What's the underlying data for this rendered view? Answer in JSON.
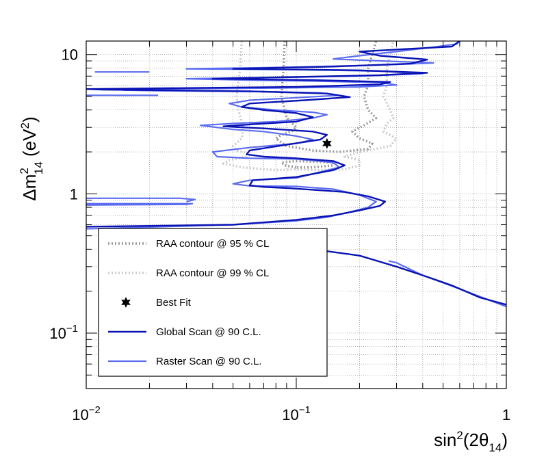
{
  "chart_data": {
    "type": "line",
    "xlabel": "sin²(2θ₁₄)",
    "ylabel": "Δm²₁₄ (eV²)",
    "x_scale": "log",
    "y_scale": "log",
    "xlim": [
      0.01,
      1
    ],
    "ylim": [
      0.04,
      12.5
    ],
    "grid": true,
    "x_ticks": [
      {
        "value": 0.01,
        "base": "10",
        "exp": "−2"
      },
      {
        "value": 0.1,
        "base": "10",
        "exp": "−1"
      },
      {
        "value": 1,
        "base": "1",
        "exp": ""
      }
    ],
    "y_ticks": [
      {
        "value": 0.1,
        "base": "10",
        "exp": "−1"
      },
      {
        "value": 1,
        "base": "1",
        "exp": ""
      },
      {
        "value": 10,
        "base": "10",
        "exp": ""
      }
    ],
    "legend_position": "lower-left",
    "legend": [
      {
        "label": "RAA contour @ 95 % CL",
        "series": "raa95"
      },
      {
        "label": "RAA contour @ 99 % CL",
        "series": "raa99"
      },
      {
        "label": "Best Fit",
        "series": "best_fit"
      },
      {
        "label": "Global Scan @ 90 C.L.",
        "series": "global"
      },
      {
        "label": "Raster Scan @ 90 C.L.",
        "series": "raster"
      }
    ],
    "best_fit": {
      "x": 0.14,
      "y": 2.3
    },
    "series": [
      {
        "id": "raster",
        "color": "#5c6cf0",
        "style": "solid",
        "segments": [
          [
            [
              0.02,
              7.5
            ],
            [
              0.011,
              7.5
            ]
          ],
          [
            [
              0.022,
              5.1
            ],
            [
              0.01,
              5.1
            ]
          ],
          [
            [
              0.03,
              0.88
            ],
            [
              0.033,
              0.91
            ],
            [
              0.028,
              0.93
            ],
            [
              0.01,
              0.93
            ]
          ],
          [
            [
              0.01,
              0.83
            ],
            [
              0.03,
              0.84
            ],
            [
              0.032,
              0.85
            ],
            [
              0.01,
              0.85
            ]
          ],
          [
            [
              0.01,
              0.56
            ],
            [
              0.05,
              0.6
            ],
            [
              0.1,
              0.64
            ],
            [
              0.14,
              0.68
            ],
            [
              0.18,
              0.74
            ],
            [
              0.22,
              0.8
            ],
            [
              0.24,
              0.88
            ],
            [
              0.2,
              0.98
            ],
            [
              0.15,
              1.08
            ],
            [
              0.1,
              1.13
            ],
            [
              0.06,
              1.14
            ],
            [
              0.05,
              1.18
            ],
            [
              0.06,
              1.25
            ],
            [
              0.1,
              1.3
            ],
            [
              0.16,
              1.55
            ],
            [
              0.15,
              1.68
            ],
            [
              0.1,
              1.78
            ],
            [
              0.06,
              1.8
            ],
            [
              0.042,
              1.85
            ],
            [
              0.04,
              2.0
            ],
            [
              0.06,
              2.15
            ],
            [
              0.1,
              2.3
            ],
            [
              0.12,
              2.45
            ],
            [
              0.1,
              2.6
            ],
            [
              0.07,
              2.8
            ],
            [
              0.05,
              2.9
            ],
            [
              0.035,
              3.1
            ],
            [
              0.05,
              3.2
            ],
            [
              0.08,
              3.3
            ],
            [
              0.12,
              3.5
            ],
            [
              0.14,
              3.7
            ],
            [
              0.12,
              3.85
            ],
            [
              0.08,
              4.0
            ],
            [
              0.055,
              4.2
            ],
            [
              0.048,
              4.45
            ],
            [
              0.06,
              4.7
            ],
            [
              0.1,
              4.9
            ],
            [
              0.16,
              5.1
            ],
            [
              0.13,
              5.3
            ],
            [
              0.08,
              5.4
            ],
            [
              0.022,
              5.5
            ],
            [
              0.015,
              5.55
            ],
            [
              0.02,
              5.65
            ],
            [
              0.08,
              5.75
            ],
            [
              0.2,
              5.85
            ],
            [
              0.3,
              6.05
            ],
            [
              0.25,
              6.3
            ],
            [
              0.12,
              6.45
            ],
            [
              0.06,
              6.55
            ],
            [
              0.03,
              6.7
            ],
            [
              0.08,
              6.85
            ],
            [
              0.2,
              7.0
            ],
            [
              0.4,
              7.3
            ],
            [
              0.25,
              7.6
            ],
            [
              0.1,
              7.8
            ],
            [
              0.03,
              7.9
            ],
            [
              0.09,
              8.1
            ],
            [
              0.25,
              8.4
            ],
            [
              0.45,
              8.7
            ],
            [
              0.25,
              9.0
            ],
            [
              0.15,
              9.3
            ],
            [
              0.2,
              9.8
            ],
            [
              0.3,
              10.5
            ],
            [
              0.45,
              11.3
            ],
            [
              0.58,
              11.9
            ],
            [
              0.6,
              12.5
            ]
          ],
          [
            [
              0.275,
              0.33
            ],
            [
              0.3,
              0.32
            ],
            [
              0.4,
              0.26
            ],
            [
              0.5,
              0.23
            ],
            [
              0.7,
              0.19
            ],
            [
              1.0,
              0.155
            ]
          ],
          [
            [
              0.06,
              0.087
            ],
            [
              0.085,
              0.083
            ]
          ]
        ]
      },
      {
        "id": "global",
        "color": "#0a14b4",
        "style": "solid",
        "segments": [
          [
            [
              0.01,
              0.58
            ],
            [
              0.05,
              0.6
            ],
            [
              0.1,
              0.65
            ],
            [
              0.15,
              0.7
            ],
            [
              0.2,
              0.76
            ],
            [
              0.25,
              0.82
            ],
            [
              0.265,
              0.88
            ],
            [
              0.22,
              0.96
            ],
            [
              0.17,
              1.03
            ],
            [
              0.12,
              1.07
            ],
            [
              0.09,
              1.1
            ],
            [
              0.07,
              1.12
            ],
            [
              0.06,
              1.15
            ],
            [
              0.062,
              1.25
            ],
            [
              0.1,
              1.32
            ],
            [
              0.15,
              1.48
            ],
            [
              0.17,
              1.6
            ],
            [
              0.15,
              1.72
            ],
            [
              0.1,
              1.8
            ],
            [
              0.07,
              1.85
            ],
            [
              0.058,
              1.92
            ],
            [
              0.06,
              2.05
            ],
            [
              0.09,
              2.25
            ],
            [
              0.13,
              2.45
            ],
            [
              0.14,
              2.65
            ],
            [
              0.12,
              2.8
            ],
            [
              0.07,
              2.95
            ],
            [
              0.045,
              3.05
            ],
            [
              0.06,
              3.15
            ],
            [
              0.1,
              3.3
            ],
            [
              0.12,
              3.55
            ],
            [
              0.1,
              3.8
            ],
            [
              0.07,
              4.0
            ],
            [
              0.055,
              4.2
            ],
            [
              0.06,
              4.45
            ],
            [
              0.11,
              4.7
            ],
            [
              0.18,
              4.95
            ],
            [
              0.14,
              5.25
            ],
            [
              0.06,
              5.45
            ],
            [
              0.012,
              5.6
            ],
            [
              0.01,
              5.65
            ],
            [
              0.03,
              5.75
            ],
            [
              0.1,
              5.85
            ],
            [
              0.25,
              6.1
            ],
            [
              0.28,
              6.35
            ],
            [
              0.12,
              6.55
            ],
            [
              0.04,
              6.7
            ],
            [
              0.1,
              6.9
            ],
            [
              0.25,
              7.1
            ],
            [
              0.42,
              7.4
            ],
            [
              0.2,
              7.7
            ],
            [
              0.05,
              7.9
            ],
            [
              0.15,
              8.2
            ],
            [
              0.35,
              8.6
            ],
            [
              0.42,
              9.2
            ],
            [
              0.25,
              9.8
            ],
            [
              0.2,
              10.5
            ],
            [
              0.35,
              11.0
            ],
            [
              0.55,
              11.4
            ],
            [
              0.6,
              12.5
            ]
          ],
          [
            [
              0.12,
              0.4
            ],
            [
              0.2,
              0.36
            ],
            [
              0.3,
              0.3
            ],
            [
              0.4,
              0.26
            ],
            [
              0.55,
              0.22
            ],
            [
              0.75,
              0.18
            ],
            [
              1.0,
              0.16
            ]
          ]
        ]
      },
      {
        "id": "raa95",
        "color": "#9a9a9a",
        "style": "dotted",
        "segments": [
          [
            [
              0.1,
              1.55
            ],
            [
              0.088,
              1.6
            ],
            [
              0.085,
              1.68
            ],
            [
              0.1,
              1.72
            ],
            [
              0.15,
              1.68
            ],
            [
              0.15,
              1.6
            ],
            [
              0.12,
              1.55
            ],
            [
              0.1,
              1.55
            ]
          ],
          [
            [
              0.088,
              12.5
            ],
            [
              0.087,
              8.0
            ],
            [
              0.085,
              5.0
            ],
            [
              0.088,
              4.0
            ],
            [
              0.09,
              3.5
            ],
            [
              0.1,
              3.0
            ],
            [
              0.095,
              2.8
            ],
            [
              0.085,
              2.65
            ],
            [
              0.08,
              2.5
            ],
            [
              0.09,
              2.2
            ],
            [
              0.12,
              2.05
            ],
            [
              0.16,
              2.0
            ],
            [
              0.22,
              2.1
            ],
            [
              0.23,
              2.3
            ],
            [
              0.2,
              2.5
            ],
            [
              0.185,
              2.8
            ],
            [
              0.21,
              3.1
            ],
            [
              0.24,
              3.5
            ],
            [
              0.22,
              4.0
            ],
            [
              0.21,
              5.0
            ],
            [
              0.22,
              6.0
            ],
            [
              0.22,
              8.0
            ],
            [
              0.23,
              10.0
            ],
            [
              0.24,
              12.5
            ]
          ]
        ]
      },
      {
        "id": "raa99",
        "color": "#cccccc",
        "style": "dotted",
        "segments": [
          [
            [
              0.055,
              12.5
            ],
            [
              0.054,
              8.0
            ],
            [
              0.052,
              5.0
            ],
            [
              0.053,
              4.0
            ],
            [
              0.056,
              3.0
            ],
            [
              0.055,
              2.5
            ],
            [
              0.05,
              2.2
            ],
            [
              0.052,
              2.05
            ],
            [
              0.06,
              1.95
            ],
            [
              0.058,
              1.85
            ],
            [
              0.048,
              1.75
            ],
            [
              0.045,
              1.65
            ],
            [
              0.055,
              1.55
            ],
            [
              0.08,
              1.48
            ],
            [
              0.1,
              1.5
            ],
            [
              0.13,
              1.48
            ],
            [
              0.17,
              1.5
            ],
            [
              0.2,
              1.6
            ],
            [
              0.2,
              1.75
            ],
            [
              0.17,
              1.85
            ],
            [
              0.2,
              2.0
            ],
            [
              0.28,
              2.2
            ],
            [
              0.3,
              2.5
            ],
            [
              0.26,
              2.8
            ],
            [
              0.27,
              3.2
            ],
            [
              0.29,
              3.5
            ],
            [
              0.28,
              4.0
            ],
            [
              0.26,
              5.0
            ],
            [
              0.27,
              6.0
            ],
            [
              0.27,
              8.0
            ],
            [
              0.28,
              10.0
            ],
            [
              0.29,
              12.5
            ]
          ]
        ]
      }
    ]
  }
}
